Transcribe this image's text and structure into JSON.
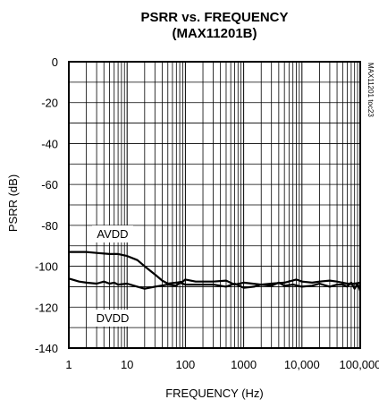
{
  "chart_data": {
    "type": "line",
    "title": "PSRR vs. FREQUENCY",
    "subtitle": "(MAX11201B)",
    "xlabel": "FREQUENCY (Hz)",
    "ylabel": "PSRR (dB)",
    "x_scale": "log",
    "xlim": [
      1,
      100000
    ],
    "ylim": [
      -140,
      0
    ],
    "grid": true,
    "x_ticks": [
      1,
      10,
      100,
      1000,
      10000,
      100000
    ],
    "x_tick_labels": [
      "1",
      "10",
      "100",
      "1000",
      "10,000",
      "100,000"
    ],
    "y_ticks": [
      0,
      -20,
      -40,
      -60,
      -80,
      -100,
      -120,
      -140
    ],
    "y_tick_labels": [
      "0",
      "-20",
      "-40",
      "-60",
      "-80",
      "-100",
      "-120",
      "-140"
    ],
    "side_note": "MAX11201 toc23",
    "series": [
      {
        "name": "AVDD",
        "color": "#000000",
        "x": [
          1,
          2,
          3,
          5,
          7,
          10,
          15,
          20,
          30,
          40,
          50,
          70,
          90,
          100,
          150,
          200,
          300,
          500,
          700,
          1000,
          2000,
          3000,
          5000,
          8000,
          10000,
          15000,
          20000,
          30000,
          40000,
          60000,
          80000,
          100000
        ],
        "y": [
          -93,
          -93,
          -93.5,
          -94,
          -94,
          -95,
          -97,
          -100,
          -104,
          -107,
          -108.5,
          -108,
          -107.5,
          -106.5,
          -107.5,
          -107.5,
          -107.5,
          -107,
          -109,
          -108,
          -109,
          -108.5,
          -108,
          -106.5,
          -107.5,
          -108,
          -107.5,
          -107,
          -107.5,
          -108.5,
          -108.5,
          -108
        ]
      },
      {
        "name": "DVDD",
        "color": "#000000",
        "x": [
          1,
          1.5,
          2,
          3,
          4,
          5,
          6,
          7,
          10,
          15,
          20,
          30,
          50,
          70,
          80,
          100,
          150,
          200,
          300,
          500,
          700,
          1000,
          1500,
          2000,
          3000,
          4000,
          5000,
          7000,
          10000,
          15000,
          20000,
          30000,
          40000,
          50000,
          60000,
          70000,
          80000,
          90000,
          100000
        ],
        "y": [
          -106,
          -107.5,
          -108,
          -108.5,
          -107.5,
          -108.5,
          -108,
          -109,
          -108.5,
          -110,
          -111,
          -110,
          -109,
          -109.5,
          -108,
          -109,
          -109,
          -109,
          -109,
          -110,
          -108.5,
          -110.5,
          -110,
          -109,
          -109.5,
          -108,
          -109.5,
          -109,
          -110,
          -109.5,
          -108.5,
          -110,
          -109,
          -109,
          -110,
          -108,
          -111,
          -108.5,
          -112
        ]
      }
    ]
  }
}
